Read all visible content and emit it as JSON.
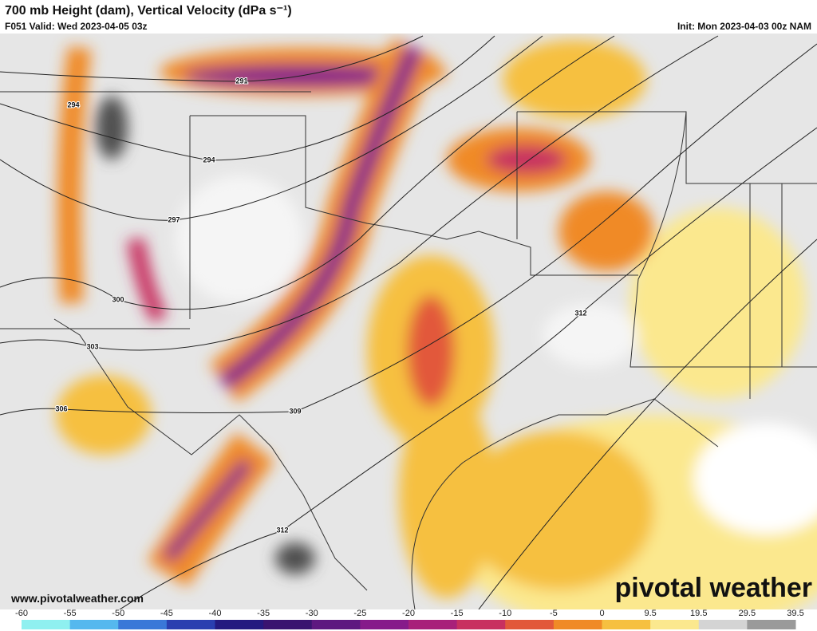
{
  "header": {
    "title": "700 mb Height (dam), Vertical Velocity (dPa s⁻¹)",
    "valid": "F051 Valid: Wed 2023-04-05 03z",
    "init": "Init: Mon 2023-04-03 00z NAM"
  },
  "contour_labels": [
    "291",
    "294",
    "294",
    "297",
    "300",
    "303",
    "306",
    "309",
    "312",
    "312"
  ],
  "footer": {
    "website": "www.pivotalweather.com",
    "logo": "pivotal weather"
  },
  "colorbar": {
    "ticks": [
      -60,
      -55,
      -50,
      -45,
      -40,
      -35,
      -30,
      -25,
      -20,
      -15,
      -10,
      -5,
      0,
      9.5,
      19.5,
      29.5,
      39.5
    ],
    "colors": [
      "#8ff0f0",
      "#55b8ee",
      "#3a78d8",
      "#2a3fb0",
      "#241a80",
      "#3a1470",
      "#5e1880",
      "#861a8a",
      "#a8207a",
      "#c83060",
      "#e2583a",
      "#f08a26",
      "#f6c040",
      "#fbe88e",
      "#d4d4d4",
      "#9a9a9a",
      "#505050"
    ]
  }
}
